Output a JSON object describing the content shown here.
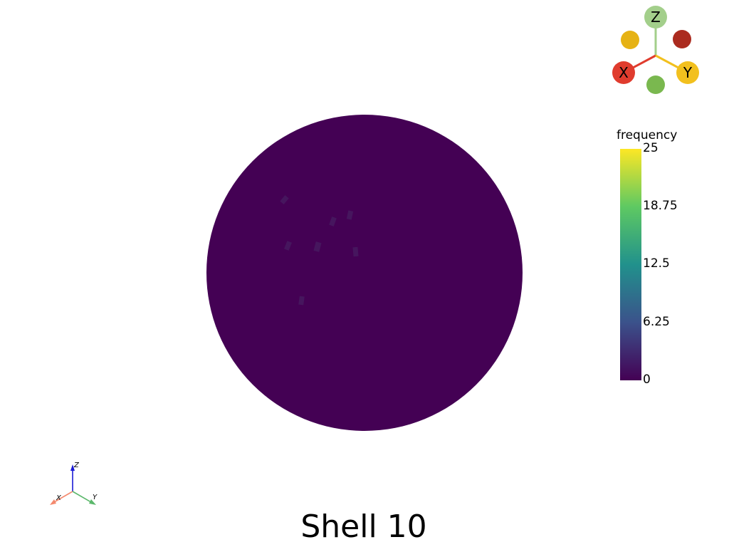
{
  "title": "Shell 10",
  "colorbar": {
    "label": "frequency",
    "ticks": [
      "25",
      "18.75",
      "12.5",
      "6.25",
      "0"
    ],
    "range": [
      0,
      25
    ],
    "colors": [
      "#440154",
      "#3b528b",
      "#21918c",
      "#5ec962",
      "#fde725"
    ]
  },
  "sphere": {
    "base_color": "#440154",
    "patch_color": "#46165e"
  },
  "orientation_widget": {
    "x_label": "X",
    "y_label": "Y",
    "z_label": "Z",
    "x_color": "#e03c2e",
    "y_color": "#f2c01e",
    "z_color": "#a3cf8b",
    "neg_x_color": "#7ab84f",
    "neg_y_color": "#e6b214",
    "neg_z_color": "#ab2b1f"
  },
  "small_axes": {
    "x_label": "X",
    "y_label": "Y",
    "z_label": "Z",
    "x_color": "#f4896e",
    "y_color": "#5cb86c",
    "z_color": "#1b1bd6"
  }
}
